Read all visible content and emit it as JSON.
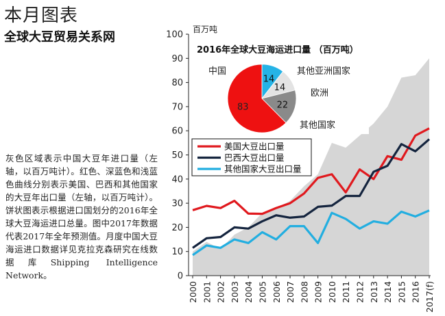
{
  "header": {
    "title": "本月图表",
    "subtitle": "全球大豆贸易关系网"
  },
  "description": "灰色区域表示中国大豆年进口量（左轴，以百万吨计）。红色、深蓝色和浅蓝色曲线分别表示美国、巴西和其他国家的大豆年出口量（左轴，以百万吨计）。饼状图表示根据进口国划分的2016年全球大豆海运进口总量。图中2017年数据代表2017年全年预测值。月度中国大豆海运进口数据详见克拉克森研究在线数据库Shipping Intelligence Network。",
  "colors": {
    "china_area": "#d6d6d6",
    "us": "#e0191e",
    "brazil": "#14243e",
    "other": "#22aee0",
    "pie_china": "#ee1111",
    "pie_other_asia": "#25b3e6",
    "pie_europe": "#e3e3e3",
    "pie_other": "#8a8a8a"
  },
  "chart_data": [
    {
      "type": "line",
      "unit_label": "百万吨",
      "x": [
        "2000",
        "2001",
        "2002",
        "2003",
        "2004",
        "2005",
        "2006",
        "2007",
        "2008",
        "2009",
        "2010",
        "2011",
        "2012",
        "2013",
        "2014",
        "2015",
        "2016",
        "2017(f)"
      ],
      "ylim": [
        0,
        100
      ],
      "yticks": [
        0,
        10,
        20,
        30,
        40,
        50,
        60,
        70,
        80,
        90,
        100
      ],
      "grid": false,
      "legend_position": "middle-left",
      "area": {
        "values": [
          10,
          14,
          11,
          17,
          20,
          26,
          28,
          31,
          37,
          42,
          55,
          53,
          58,
          63,
          70,
          82,
          83,
          90
        ]
      },
      "series": [
        {
          "name": "美国大豆出口量",
          "values": [
            27.1,
            28.9,
            28.0,
            31.0,
            25.7,
            25.6,
            28.0,
            30.0,
            34.0,
            40.5,
            42.0,
            34.5,
            44.0,
            40.0,
            49.5,
            48.0,
            58.0,
            61.0
          ]
        },
        {
          "name": "巴西大豆出口量",
          "values": [
            11.5,
            15.5,
            16.0,
            20.0,
            19.5,
            22.5,
            25.0,
            24.0,
            24.5,
            28.5,
            29.0,
            33.0,
            33.0,
            43.0,
            45.5,
            54.5,
            51.5,
            56.5
          ]
        },
        {
          "name": "其他国家大豆出口量",
          "values": [
            8.5,
            12.5,
            11.5,
            15.0,
            13.5,
            18.0,
            15.0,
            20.5,
            20.5,
            13.5,
            26.0,
            23.5,
            19.5,
            22.5,
            21.5,
            26.5,
            24.5,
            27.0
          ]
        }
      ]
    },
    {
      "type": "pie",
      "title": "2016年全球大豆海运进口量 （百万吨）",
      "slices": [
        {
          "name": "中国",
          "value": 83
        },
        {
          "name": "其他亚洲国家",
          "value": 14
        },
        {
          "name": "欧洲",
          "value": 14
        },
        {
          "name": "其他国家",
          "value": 22
        }
      ]
    }
  ]
}
